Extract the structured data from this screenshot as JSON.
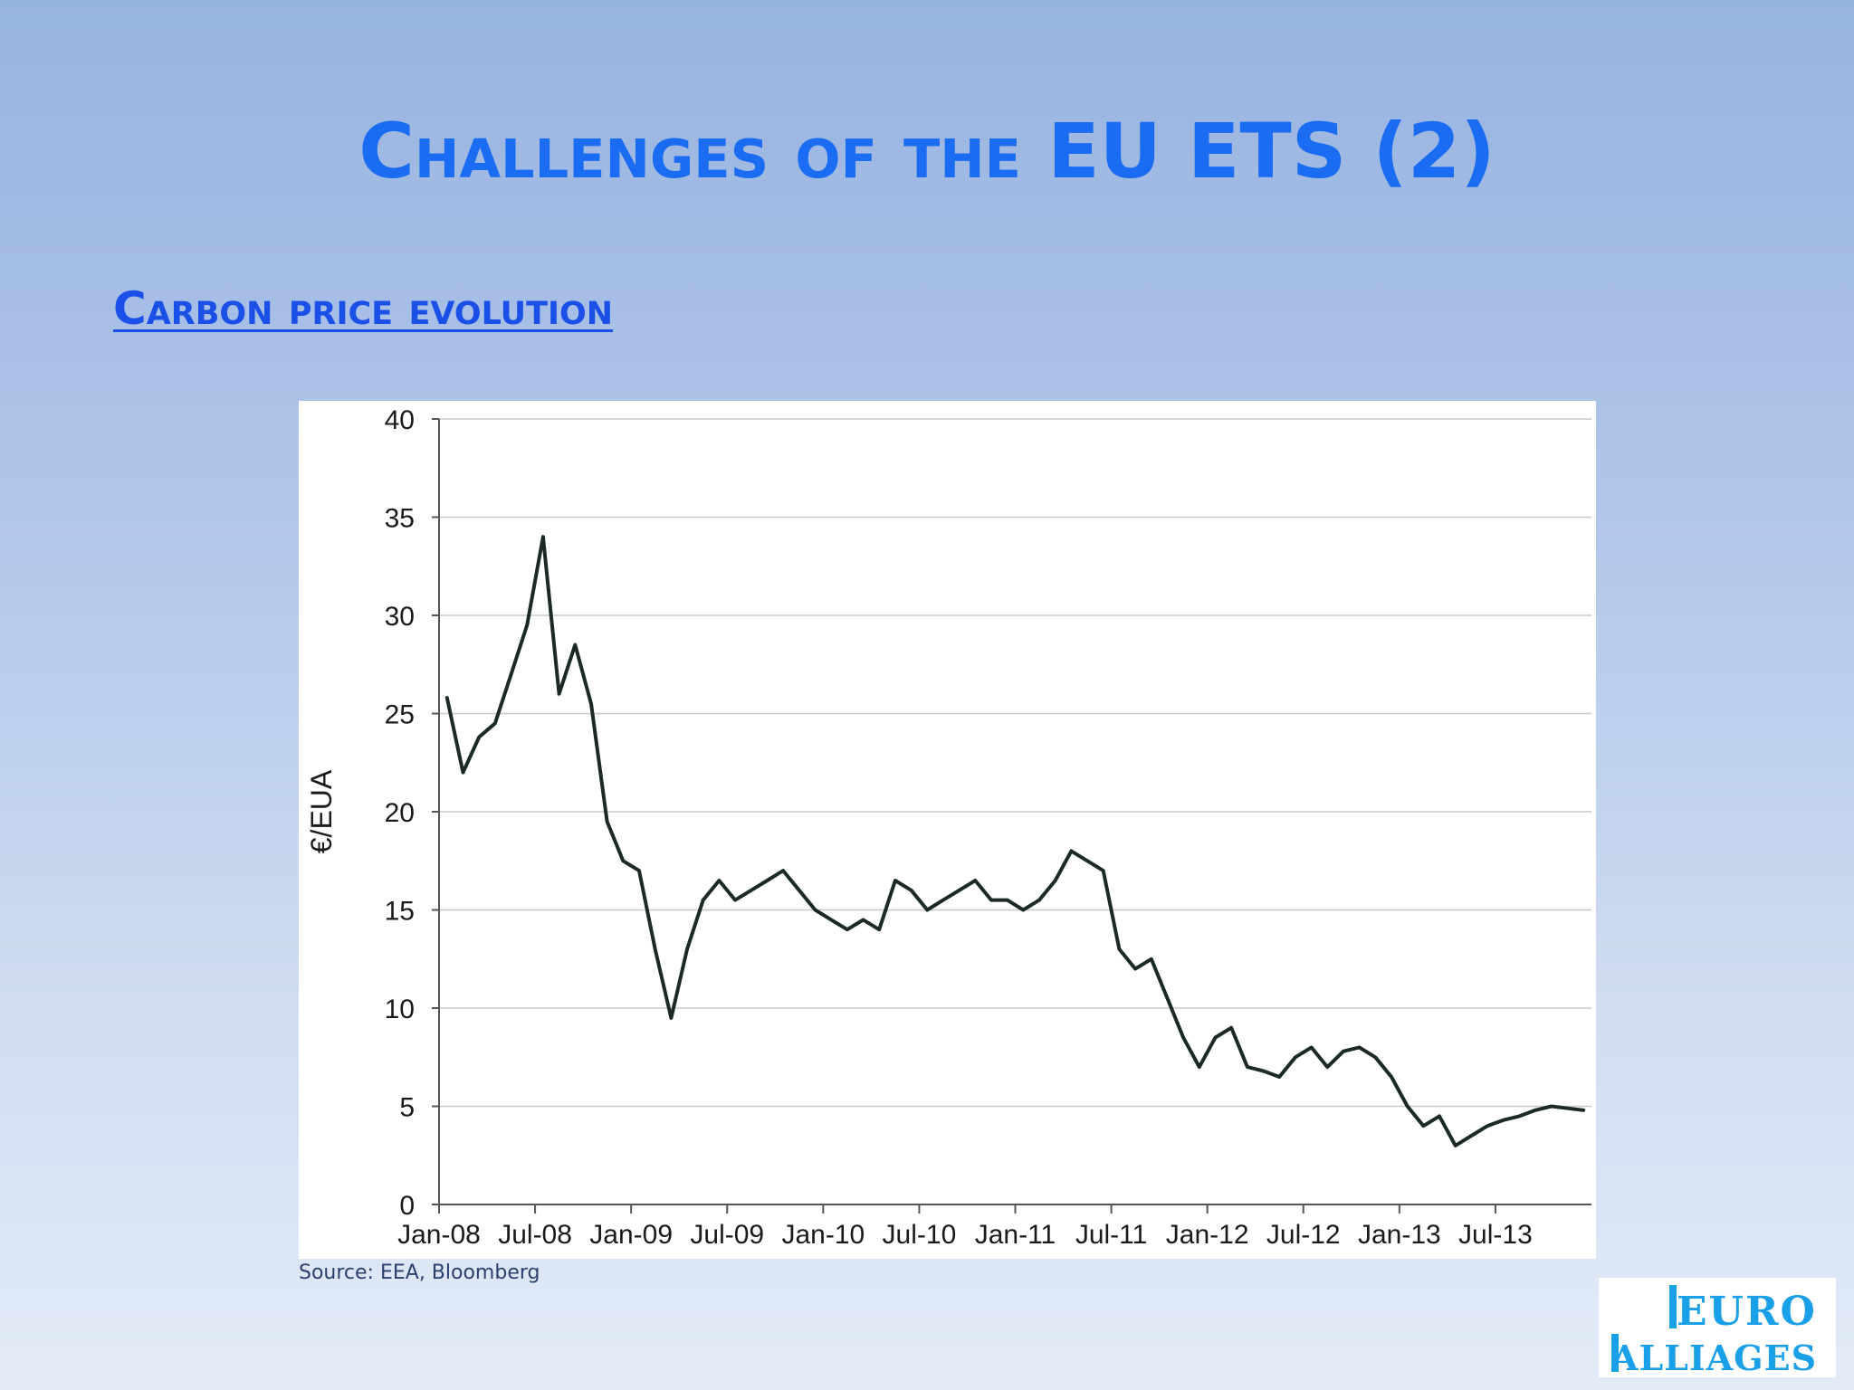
{
  "slide": {
    "title": "Challenges of the EU ETS (2)",
    "subtitle": "Carbon price evolution",
    "source": "Source: EEA, Bloomberg",
    "logo_text": [
      "EURO",
      "ALLIAGES"
    ],
    "colors": {
      "title": "#1a6cf2",
      "subtitle": "#1a4fe8",
      "line": "#1c2a24",
      "logo": "#1aa0e8"
    }
  },
  "chart_data": {
    "type": "line",
    "title": "",
    "xlabel": "",
    "ylabel": "€/EUA",
    "ylim": [
      0,
      40
    ],
    "yticks": [
      0,
      5,
      10,
      15,
      20,
      25,
      30,
      35,
      40
    ],
    "xtick_labels": [
      "Jan-08",
      "Jul-08",
      "Jan-09",
      "Jul-09",
      "Jan-10",
      "Jul-10",
      "Jan-11",
      "Jul-11",
      "Jan-12",
      "Jul-12",
      "Jan-13",
      "Jul-13"
    ],
    "xlim": [
      "2008-01",
      "2013-12"
    ],
    "grid": true,
    "series": [
      {
        "x": [
          "2008-01",
          "2008-02",
          "2008-03",
          "2008-04",
          "2008-05",
          "2008-06",
          "2008-07",
          "2008-08",
          "2008-09",
          "2008-10",
          "2008-11",
          "2008-12",
          "2009-01",
          "2009-02",
          "2009-03",
          "2009-04",
          "2009-05",
          "2009-06",
          "2009-07",
          "2009-08",
          "2009-09",
          "2009-10",
          "2009-11",
          "2009-12",
          "2010-01",
          "2010-02",
          "2010-03",
          "2010-04",
          "2010-05",
          "2010-06",
          "2010-07",
          "2010-08",
          "2010-09",
          "2010-10",
          "2010-11",
          "2010-12",
          "2011-01",
          "2011-02",
          "2011-03",
          "2011-04",
          "2011-05",
          "2011-06",
          "2011-07",
          "2011-08",
          "2011-09",
          "2011-10",
          "2011-11",
          "2011-12",
          "2012-01",
          "2012-02",
          "2012-03",
          "2012-04",
          "2012-05",
          "2012-06",
          "2012-07",
          "2012-08",
          "2012-09",
          "2012-10",
          "2012-11",
          "2012-12",
          "2013-01",
          "2013-02",
          "2013-03",
          "2013-04",
          "2013-05",
          "2013-06",
          "2013-07",
          "2013-08",
          "2013-09",
          "2013-10",
          "2013-11",
          "2013-12"
        ],
        "values": [
          25.8,
          22.0,
          23.8,
          24.5,
          27.0,
          29.5,
          34.0,
          26.0,
          28.5,
          25.5,
          19.5,
          17.5,
          17.0,
          13.0,
          9.5,
          13.0,
          15.5,
          16.5,
          15.5,
          16.0,
          16.5,
          17.0,
          16.0,
          15.0,
          14.5,
          14.0,
          14.5,
          14.0,
          16.5,
          16.0,
          15.0,
          15.5,
          16.0,
          16.5,
          15.5,
          15.5,
          15.0,
          15.5,
          16.5,
          18.0,
          17.5,
          17.0,
          13.0,
          12.0,
          12.5,
          10.5,
          8.5,
          7.0,
          8.5,
          9.0,
          7.0,
          6.8,
          6.5,
          7.5,
          8.0,
          7.0,
          7.8,
          8.0,
          7.5,
          6.5,
          5.0,
          4.0,
          4.5,
          3.0,
          3.5,
          4.0,
          4.3,
          4.5,
          4.8,
          5.0,
          4.9,
          4.8
        ]
      }
    ]
  }
}
